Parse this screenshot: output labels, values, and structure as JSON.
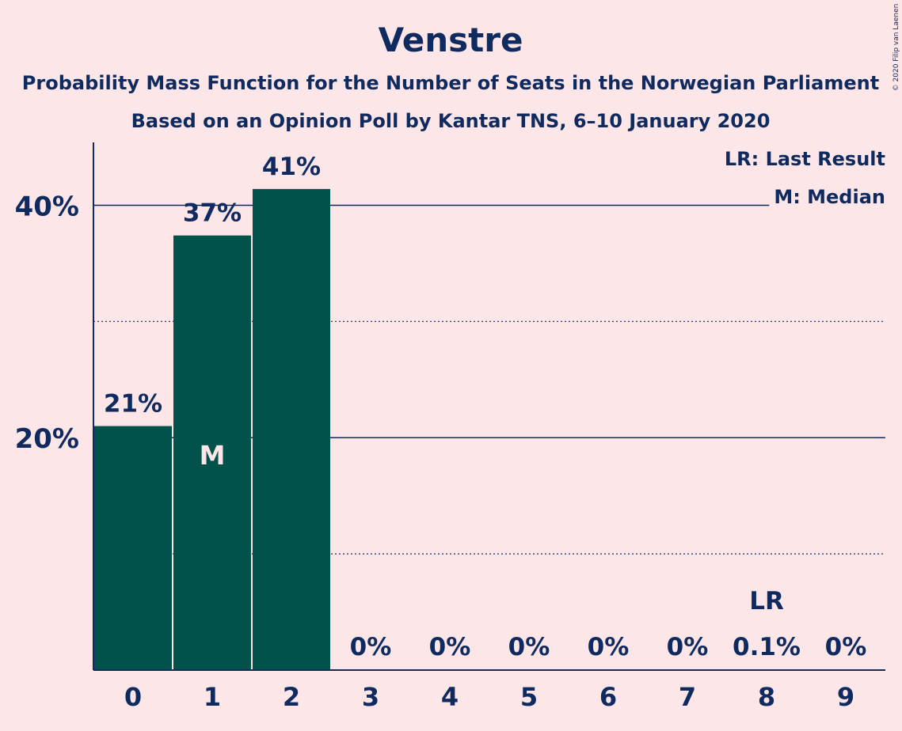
{
  "chart_data": {
    "type": "bar",
    "title": "Venstre",
    "subtitle_1": "Probability Mass Function for the Number of Seats in the Norwegian Parliament",
    "subtitle_2": "Based on an Opinion Poll by Kantar TNS, 6–10 January 2020",
    "copyright": "© 2020 Filip van Laenen",
    "categories": [
      "0",
      "1",
      "2",
      "3",
      "4",
      "5",
      "6",
      "7",
      "8",
      "9"
    ],
    "values": [
      21,
      37.4,
      41.4,
      0,
      0,
      0,
      0,
      0,
      0.1,
      0
    ],
    "value_labels": [
      "21%",
      "37%",
      "41%",
      "0%",
      "0%",
      "0%",
      "0%",
      "0%",
      "0.1%",
      "0%"
    ],
    "y_ticks": [
      {
        "value": 20,
        "label": "20%"
      },
      {
        "value": 40,
        "label": "40%"
      }
    ],
    "minor_gridlines": [
      10,
      30
    ],
    "ylim": [
      0,
      45
    ],
    "median_index": 1,
    "median_marker": "M",
    "last_result_index": 8,
    "last_result_marker": "LR",
    "legend": [
      "LR: Last Result",
      "M: Median"
    ],
    "legend_position": "top-right",
    "colors": {
      "background": "#fde6e8",
      "bar": "#01524a",
      "text": "#0f2a5f",
      "axis": "#0f2a5f",
      "median_text": "#fde6e8"
    }
  }
}
